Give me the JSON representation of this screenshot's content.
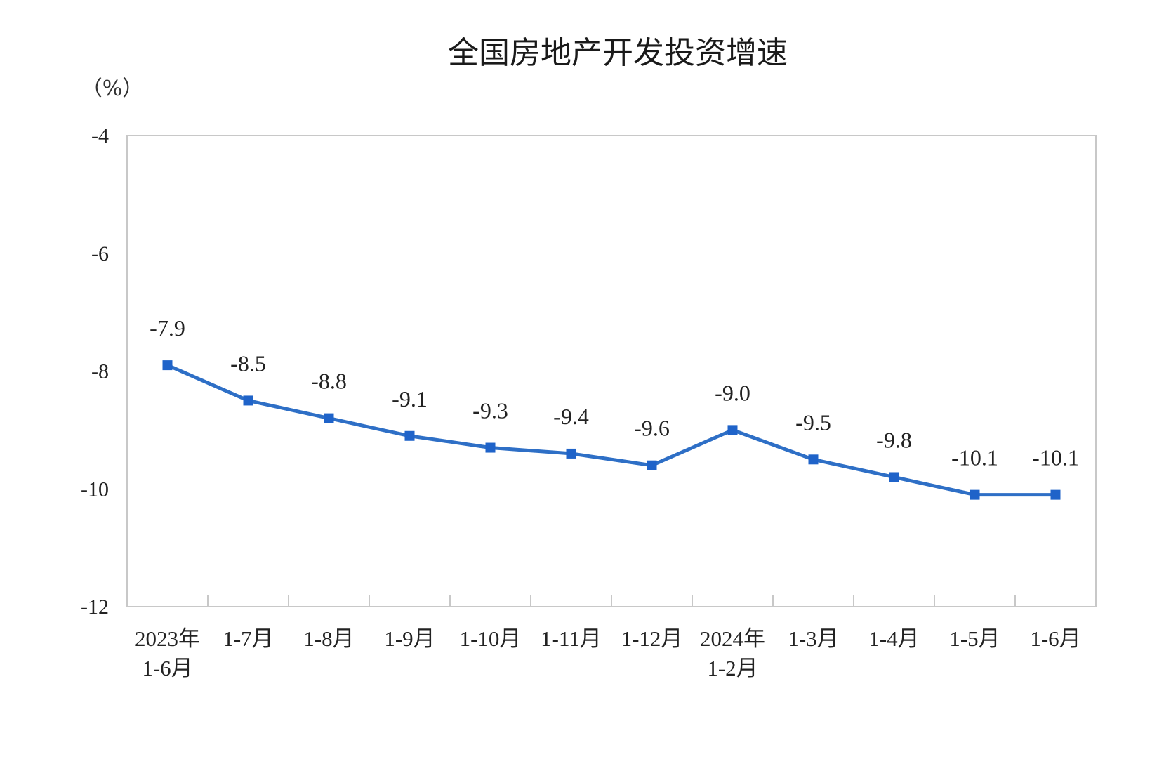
{
  "chart_data": {
    "type": "line",
    "title": "全国房地产开发投资增速",
    "ylabel": "（%）",
    "xlabel": "",
    "categories": [
      [
        "2023年",
        "1-6月"
      ],
      [
        "1-7月"
      ],
      [
        "1-8月"
      ],
      [
        "1-9月"
      ],
      [
        "1-10月"
      ],
      [
        "1-11月"
      ],
      [
        "1-12月"
      ],
      [
        "2024年",
        "1-2月"
      ],
      [
        "1-3月"
      ],
      [
        "1-4月"
      ],
      [
        "1-5月"
      ],
      [
        "1-6月"
      ]
    ],
    "series": [
      {
        "values": [
          -7.9,
          -8.5,
          -8.8,
          -9.1,
          -9.3,
          -9.4,
          -9.6,
          -9.0,
          -9.5,
          -9.8,
          -10.1,
          -10.1
        ],
        "labels": [
          "-7.9",
          "-8.5",
          "-8.8",
          "-9.1",
          "-9.3",
          "-9.4",
          "-9.6",
          "-9.0",
          "-9.5",
          "-9.8",
          "-10.1",
          "-10.1"
        ],
        "color": "#2e6fc6",
        "marker": "square"
      }
    ],
    "ylim": [
      -12,
      -4
    ],
    "yticks": [
      -4,
      -6,
      -8,
      -10,
      -12
    ],
    "ytick_labels": [
      "-4",
      "-6",
      "-8",
      "-10",
      "-12"
    ],
    "grid": false,
    "legend": "none",
    "axis_color": "#c8c8c8"
  }
}
